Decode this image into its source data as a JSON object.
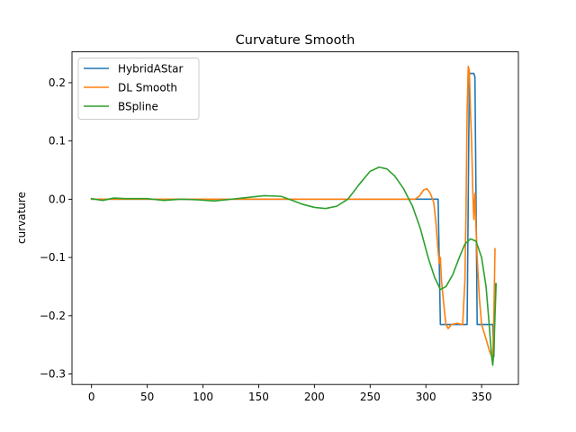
{
  "chart_data": {
    "type": "line",
    "title": "Curvature Smooth",
    "xlabel": "",
    "ylabel": "curvature",
    "xlim": [
      -17.5,
      383
    ],
    "ylim": [
      -0.318,
      0.253
    ],
    "xticks": [
      0,
      50,
      100,
      150,
      200,
      250,
      300,
      350
    ],
    "yticks": [
      -0.3,
      -0.2,
      -0.1,
      0.0,
      0.1,
      0.2
    ],
    "ytick_labels": [
      "−0.3",
      "−0.2",
      "−0.1",
      "0.0",
      "0.1",
      "0.2"
    ],
    "grid": false,
    "legend_position": "top-left",
    "series": [
      {
        "name": "HybridAStar",
        "color": "#1f77b4",
        "points": [
          [
            0,
            0
          ],
          [
            311,
            0
          ],
          [
            313,
            -0.215
          ],
          [
            337,
            -0.215
          ],
          [
            339,
            0.216
          ],
          [
            343,
            0.216
          ],
          [
            344,
            0.21
          ],
          [
            346,
            -0.215
          ],
          [
            360,
            -0.215
          ],
          [
            361,
            -0.27
          ],
          [
            362,
            -0.145
          ]
        ]
      },
      {
        "name": "DL Smooth",
        "color": "#ff7f0e",
        "points": [
          [
            0,
            0
          ],
          [
            290,
            0
          ],
          [
            294,
            0.005
          ],
          [
            298,
            0.016
          ],
          [
            301,
            0.018
          ],
          [
            304,
            0.01
          ],
          [
            307,
            -0.005
          ],
          [
            309,
            -0.04
          ],
          [
            311,
            -0.09
          ],
          [
            312,
            -0.11
          ],
          [
            313,
            -0.1
          ],
          [
            314,
            -0.14
          ],
          [
            316,
            -0.18
          ],
          [
            318,
            -0.215
          ],
          [
            320,
            -0.222
          ],
          [
            323,
            -0.215
          ],
          [
            328,
            -0.213
          ],
          [
            333,
            -0.215
          ],
          [
            335,
            -0.14
          ],
          [
            336,
            -0.02
          ],
          [
            337,
            0.15
          ],
          [
            338,
            0.228
          ],
          [
            339,
            0.22
          ],
          [
            340,
            0.15
          ],
          [
            341,
            0.1
          ],
          [
            342,
            0.02
          ],
          [
            343,
            -0.035
          ],
          [
            344,
            0.01
          ],
          [
            345,
            -0.05
          ],
          [
            346,
            -0.1
          ],
          [
            348,
            -0.17
          ],
          [
            350,
            -0.215
          ],
          [
            354,
            -0.24
          ],
          [
            357,
            -0.26
          ],
          [
            359,
            -0.27
          ],
          [
            360,
            -0.275
          ],
          [
            361,
            -0.2
          ],
          [
            362,
            -0.085
          ]
        ]
      },
      {
        "name": "BSpline",
        "color": "#2ca02c",
        "points": [
          [
            0,
            0.001
          ],
          [
            10,
            -0.002
          ],
          [
            20,
            0.002
          ],
          [
            30,
            0.001
          ],
          [
            50,
            0.001
          ],
          [
            65,
            -0.002
          ],
          [
            80,
            0
          ],
          [
            95,
            -0.001
          ],
          [
            110,
            -0.003
          ],
          [
            125,
            0
          ],
          [
            140,
            0.003
          ],
          [
            155,
            0.006
          ],
          [
            170,
            0.005
          ],
          [
            180,
            -0.002
          ],
          [
            190,
            -0.009
          ],
          [
            200,
            -0.014
          ],
          [
            210,
            -0.016
          ],
          [
            220,
            -0.012
          ],
          [
            230,
            0
          ],
          [
            240,
            0.025
          ],
          [
            250,
            0.048
          ],
          [
            258,
            0.055
          ],
          [
            265,
            0.052
          ],
          [
            272,
            0.04
          ],
          [
            280,
            0.018
          ],
          [
            288,
            -0.012
          ],
          [
            295,
            -0.05
          ],
          [
            302,
            -0.1
          ],
          [
            308,
            -0.135
          ],
          [
            313,
            -0.155
          ],
          [
            318,
            -0.15
          ],
          [
            324,
            -0.13
          ],
          [
            330,
            -0.1
          ],
          [
            335,
            -0.077
          ],
          [
            340,
            -0.068
          ],
          [
            345,
            -0.072
          ],
          [
            350,
            -0.1
          ],
          [
            354,
            -0.15
          ],
          [
            357,
            -0.22
          ],
          [
            359,
            -0.27
          ],
          [
            360,
            -0.285
          ],
          [
            361,
            -0.26
          ],
          [
            362,
            -0.2
          ],
          [
            363,
            -0.145
          ]
        ]
      }
    ]
  }
}
